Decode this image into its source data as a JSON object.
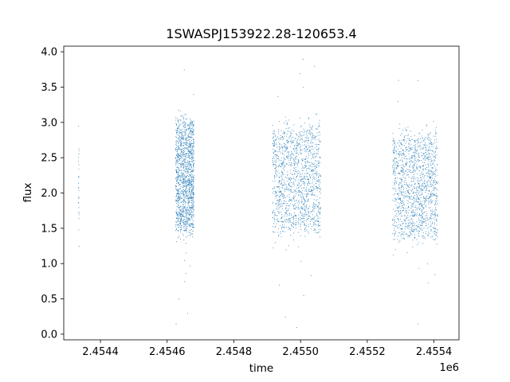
{
  "chart_data": {
    "type": "scatter",
    "title": "1SWASPJ153922.28-120653.4",
    "xlabel": "time",
    "ylabel": "flux",
    "x_offset_label": "1e6",
    "xlim": [
      2454290,
      2455475
    ],
    "ylim": [
      -0.08,
      4.08
    ],
    "xticks": [
      2454400,
      2454600,
      2454800,
      2455000,
      2455200,
      2455400
    ],
    "xtick_labels": [
      "2.4544",
      "2.4546",
      "2.4548",
      "2.4550",
      "2.4552",
      "2.4554"
    ],
    "yticks": [
      0.0,
      0.5,
      1.0,
      1.5,
      2.0,
      2.5,
      3.0,
      3.5,
      4.0
    ],
    "ytick_labels": [
      "0.0",
      "0.5",
      "1.0",
      "1.5",
      "2.0",
      "2.5",
      "3.0",
      "3.5",
      "4.0"
    ],
    "grid": false,
    "marker_color": "#1f77b4",
    "marker": "point",
    "series": [
      {
        "clusters": [
          {
            "x_range": [
              2454333,
              2454335
            ],
            "y_range": [
              1.6,
              2.8
            ],
            "y_median": 2.1,
            "density": "sparse",
            "outliers_y": [
              1.25,
              2.95
            ]
          },
          {
            "x_range": [
              2454625,
              2454680
            ],
            "y_range": [
              1.4,
              3.0
            ],
            "y_median": 2.25,
            "density": "dense",
            "outliers_y": [
              0.15,
              0.3,
              0.5,
              0.75,
              1.05,
              3.4,
              3.75
            ]
          },
          {
            "x_range": [
              2454915,
              2455060
            ],
            "y_range": [
              1.5,
              3.0
            ],
            "y_median": 2.2,
            "density": "dense",
            "outliers_y": [
              0.1,
              0.25,
              0.55,
              0.7,
              1.2,
              3.5,
              3.8,
              3.9
            ]
          },
          {
            "x_range": [
              2455275,
              2455410
            ],
            "y_range": [
              1.4,
              2.9
            ],
            "y_median": 2.1,
            "density": "dense",
            "outliers_y": [
              0.15,
              0.85,
              1.0,
              3.3,
              3.6
            ]
          }
        ]
      }
    ]
  }
}
